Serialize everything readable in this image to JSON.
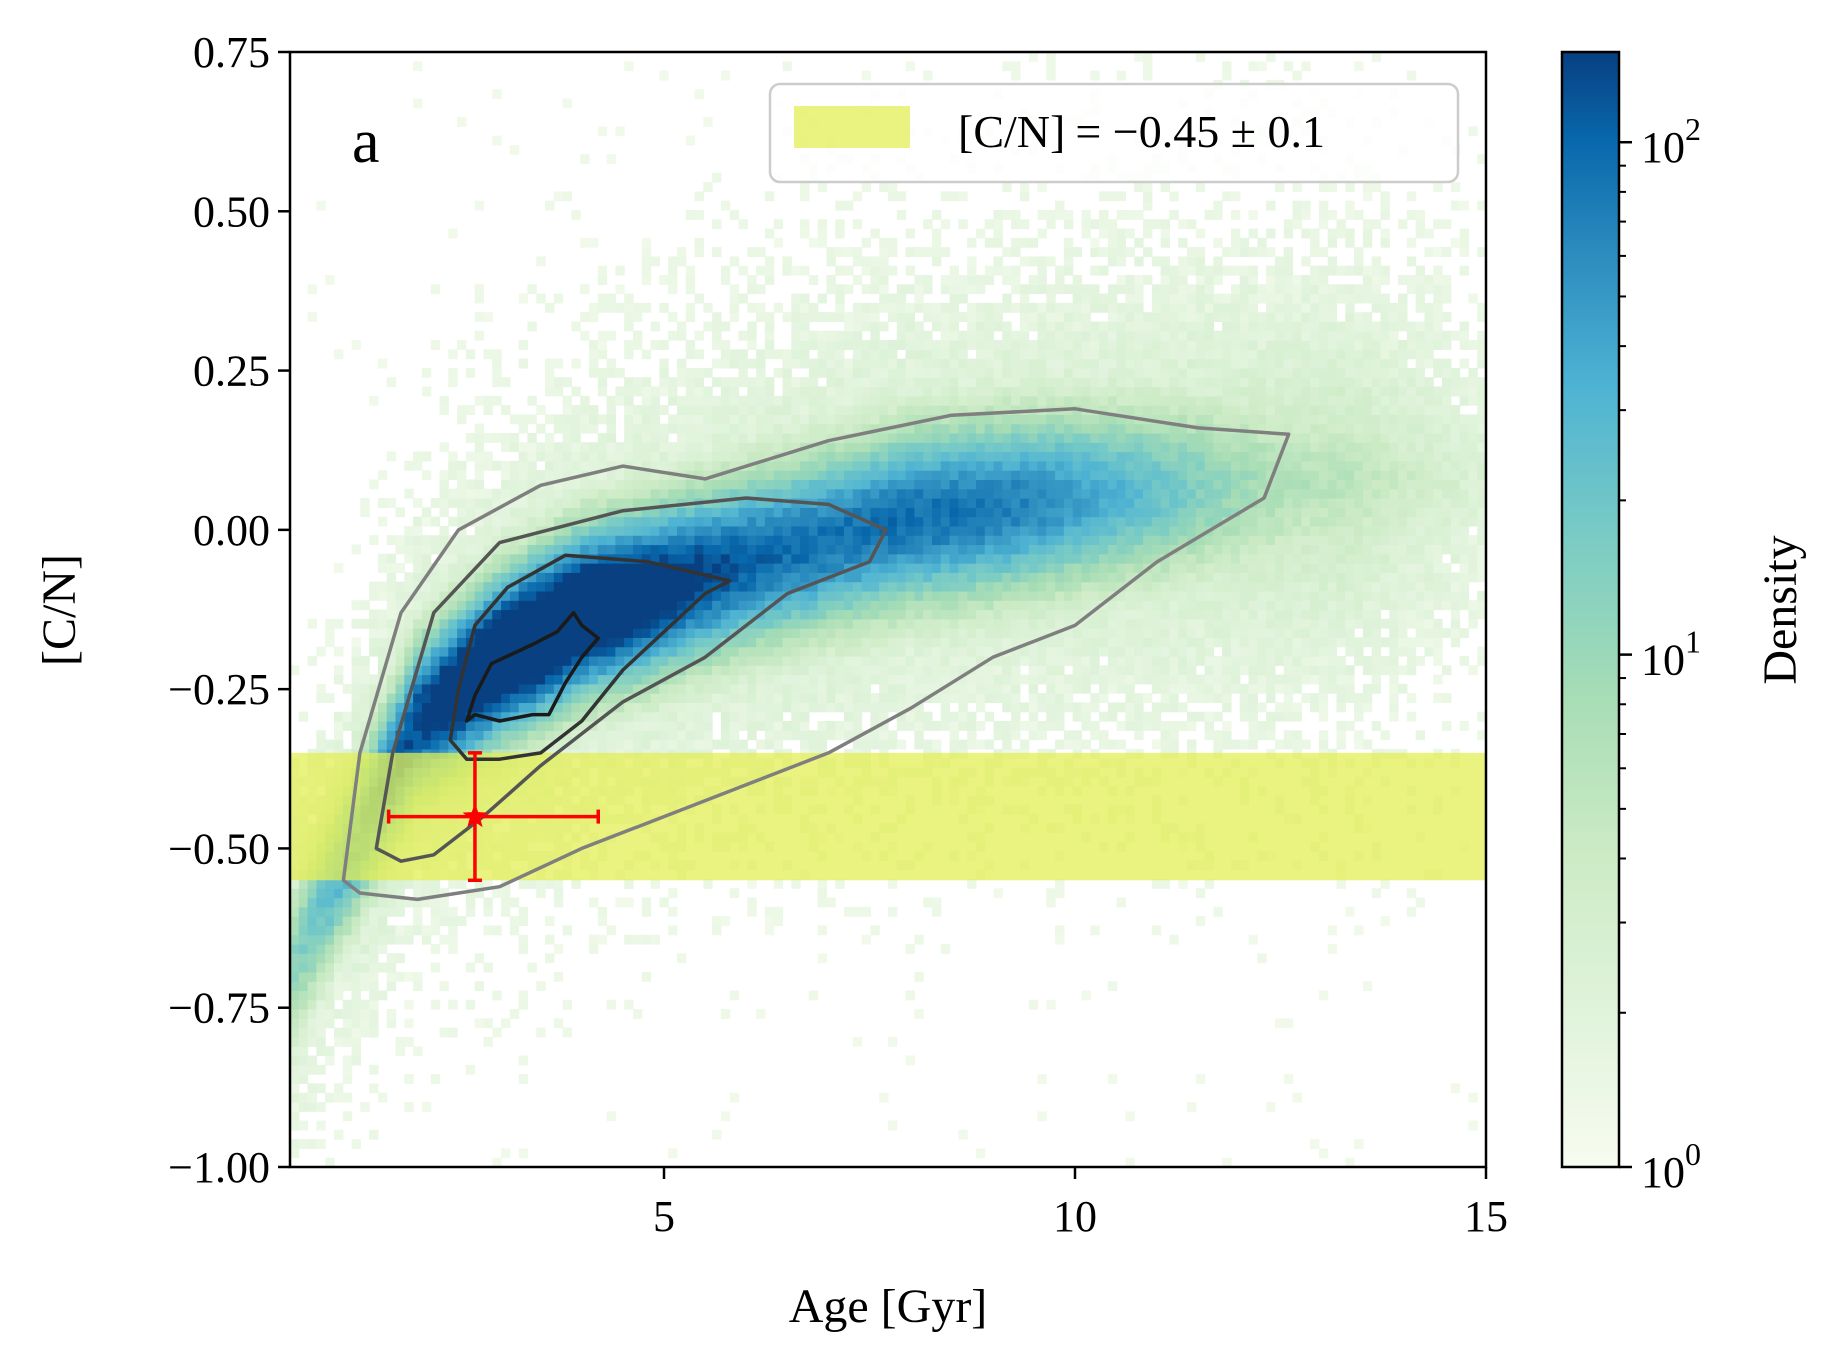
{
  "chart_data": {
    "type": "heatmap",
    "panel_label": "a",
    "xlabel": "Age [Gyr]",
    "ylabel": "[C/N]",
    "xlim": [
      0.45,
      15
    ],
    "ylim": [
      -1.0,
      0.75
    ],
    "x_ticks": [
      5,
      10,
      15
    ],
    "x_tick_labels": [
      "5",
      "10",
      "15"
    ],
    "y_ticks": [
      0.75,
      0.5,
      0.25,
      0.0,
      -0.25,
      -0.5,
      -0.75,
      -1.0
    ],
    "y_tick_labels": [
      "0.75",
      "0.50",
      "0.25",
      "0.00",
      "−0.25",
      "−0.50",
      "−0.75",
      "−1.00"
    ],
    "colormap": "GnBu (log scale)",
    "colorbar": {
      "label": "Density",
      "scale": "log",
      "range": [
        1,
        150
      ],
      "ticks": [
        1,
        10,
        100
      ],
      "tick_bases": [
        "10",
        "10",
        "10"
      ],
      "tick_exponents": [
        "0",
        "1",
        "2"
      ]
    },
    "density_ridge": {
      "description": "Density ridge of the age-[C/N] distribution",
      "x": [
        1.0,
        2.0,
        3.0,
        4.0,
        6.0,
        8.0,
        10.0,
        12.0,
        14.0
      ],
      "y": [
        -0.55,
        -0.3,
        -0.2,
        -0.13,
        -0.05,
        0.02,
        0.05,
        0.07,
        0.08
      ]
    },
    "contour_levels": 4,
    "contours": [
      {
        "level": "innermost",
        "color": "#1a1a1a",
        "x": [
          2.6,
          2.7,
          2.9,
          3.4,
          3.7,
          3.9,
          4.0,
          4.2,
          4.0,
          3.8,
          3.6,
          3.4,
          3.0,
          2.7,
          2.6
        ],
        "y": [
          -0.3,
          -0.26,
          -0.21,
          -0.18,
          -0.16,
          -0.13,
          -0.15,
          -0.17,
          -0.2,
          -0.24,
          -0.29,
          -0.29,
          -0.3,
          -0.29,
          -0.3
        ]
      },
      {
        "level": "second",
        "color": "#333333",
        "x": [
          2.4,
          2.5,
          2.7,
          3.1,
          3.8,
          4.8,
          5.8,
          5.5,
          5.0,
          4.5,
          4.0,
          3.5,
          3.0,
          2.6,
          2.4
        ],
        "y": [
          -0.33,
          -0.25,
          -0.15,
          -0.09,
          -0.04,
          -0.05,
          -0.08,
          -0.1,
          -0.16,
          -0.22,
          -0.3,
          -0.35,
          -0.36,
          -0.36,
          -0.33
        ]
      },
      {
        "level": "third",
        "color": "#555555",
        "x": [
          1.5,
          1.7,
          2.2,
          3.0,
          4.5,
          6.0,
          7.0,
          7.7,
          7.5,
          6.5,
          5.5,
          4.5,
          3.5,
          2.8,
          2.2,
          1.8,
          1.5
        ],
        "y": [
          -0.5,
          -0.35,
          -0.13,
          -0.02,
          0.03,
          0.05,
          0.04,
          0.0,
          -0.05,
          -0.1,
          -0.2,
          -0.27,
          -0.37,
          -0.45,
          -0.51,
          -0.52,
          -0.5
        ]
      },
      {
        "level": "outer",
        "color": "#7f7f7f",
        "x": [
          1.1,
          1.3,
          1.8,
          2.5,
          3.5,
          4.5,
          5.5,
          7.0,
          8.5,
          10.0,
          11.5,
          12.6,
          12.3,
          11.0,
          10.0,
          9.0,
          8.0,
          7.0,
          6.0,
          5.0,
          4.0,
          3.0,
          2.0,
          1.3,
          1.1
        ],
        "y": [
          -0.55,
          -0.35,
          -0.13,
          0.0,
          0.07,
          0.1,
          0.08,
          0.14,
          0.18,
          0.19,
          0.16,
          0.15,
          0.05,
          -0.05,
          -0.15,
          -0.2,
          -0.28,
          -0.35,
          -0.4,
          -0.45,
          -0.5,
          -0.56,
          -0.58,
          -0.57,
          -0.55
        ]
      }
    ],
    "band": {
      "label": "[C/N] = −0.45 ± 0.1",
      "center": -0.45,
      "half_width": 0.1,
      "color": "#e3ee55",
      "alpha": 0.75
    },
    "legend_position": "top-right",
    "point": {
      "marker": "star",
      "color": "#ff0000",
      "x": 2.7,
      "y": -0.45,
      "xerr_low": 1.05,
      "xerr_high": 1.5,
      "yerr": 0.1
    }
  },
  "legend": {
    "label_lhs": "[C/N]",
    "label_rhs": "= −0.45 ± 0.1"
  }
}
